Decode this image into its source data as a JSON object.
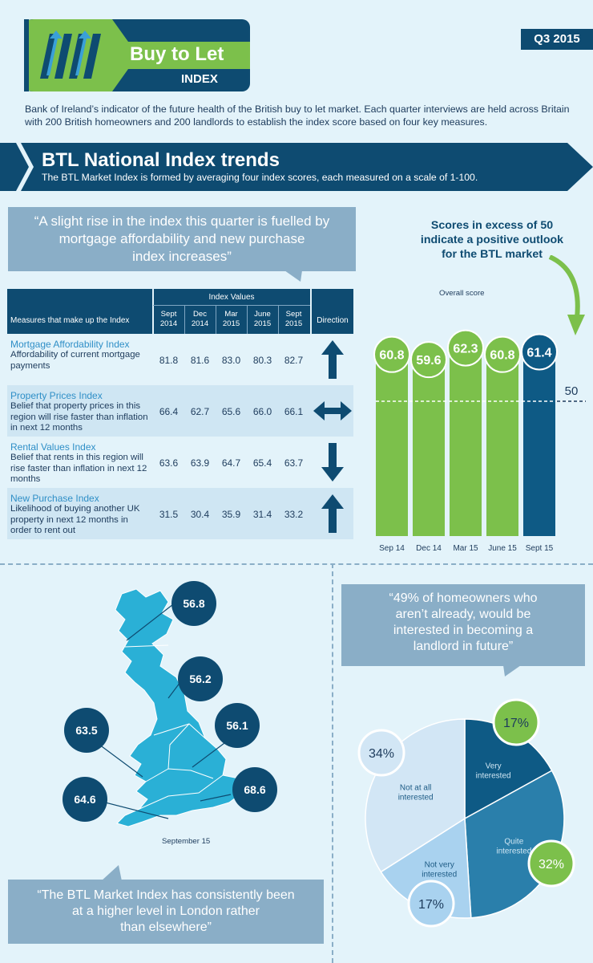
{
  "header": {
    "logo_title": "Buy to Let",
    "logo_sub": "INDEX",
    "quarter": "Q3 2015",
    "intro": "Bank of Ireland’s indicator of the future health of the British buy to let market. Each quarter interviews are held across Britain with 200 British homeowners and 200 landlords to establish the index score based on four key measures."
  },
  "banner": {
    "title": "BTL National Index trends",
    "subtitle": "The BTL Market Index is formed by averaging four index scores, each measured on a scale of 1-100."
  },
  "quote1": {
    "line1": "“A slight rise in the index this quarter is fuelled by",
    "line2": "mortgage affordability and new purchase",
    "line3": "index increases”"
  },
  "table": {
    "measures_header": "Measures that make up the Index",
    "index_values_header": "Index Values",
    "direction_header": "Direction",
    "columns": [
      {
        "l1": "Sept",
        "l2": "2014"
      },
      {
        "l1": "Dec",
        "l2": "2014"
      },
      {
        "l1": "Mar",
        "l2": "2015"
      },
      {
        "l1": "June",
        "l2": "2015"
      },
      {
        "l1": "Sept",
        "l2": "2015"
      }
    ],
    "rows": [
      {
        "title": "Mortgage Affordability Index",
        "desc": "Affordability of current mortgage payments",
        "values": [
          "81.8",
          "81.6",
          "83.0",
          "80.3",
          "82.7"
        ],
        "direction": "up-arrow-icon"
      },
      {
        "title": "Property Prices Index",
        "desc": "Belief that property prices in this region will rise faster than inflation in next 12 months",
        "values": [
          "66.4",
          "62.7",
          "65.6",
          "66.0",
          "66.1"
        ],
        "direction": "left-right-arrow-icon"
      },
      {
        "title": "Rental Values Index",
        "desc": "Belief that rents in this region will rise faster than inflation in next 12 months",
        "values": [
          "63.6",
          "63.9",
          "64.7",
          "65.4",
          "63.7"
        ],
        "direction": "down-arrow-icon"
      },
      {
        "title": "New Purchase Index",
        "desc": "Likelihood of buying another UK property in next 12 months in order to rent out",
        "values": [
          "31.5",
          "30.4",
          "35.9",
          "31.4",
          "33.2"
        ],
        "direction": "up-arrow-icon"
      }
    ]
  },
  "callout": {
    "line1": "Scores in excess of 50",
    "line2": "indicate a positive outlook",
    "line3": "for the BTL market"
  },
  "chart_data": [
    {
      "type": "bar",
      "title": "Overall score",
      "categories": [
        "Sep 14",
        "Dec 14",
        "Mar 15",
        "June 15",
        "Sept 15"
      ],
      "values": [
        60.8,
        59.6,
        62.3,
        60.8,
        61.4
      ],
      "labels": [
        "60.8",
        "59.6",
        "62.3",
        "60.8",
        "61.4"
      ],
      "reference_line": {
        "value": 50,
        "label": "50"
      },
      "colors": {
        "past": "#7cc04b",
        "current": "#0e5a85"
      }
    },
    {
      "type": "pie",
      "categories": [
        "Very interested",
        "Quite interested",
        "Not very interested",
        "Not at all interested"
      ],
      "labels": [
        "17%",
        "32%",
        "17%",
        "34%"
      ],
      "values": [
        17,
        32,
        17,
        34
      ],
      "colors": [
        "#0e5a85",
        "#2a7fab",
        "#a9d2ef",
        "#d2e6f5"
      ]
    }
  ],
  "map": {
    "caption": "September 15",
    "regions": [
      {
        "name": "Scotland",
        "score": "56.8"
      },
      {
        "name": "North England",
        "score": "56.2"
      },
      {
        "name": "Wales",
        "score": "63.5"
      },
      {
        "name": "Midlands / East",
        "score": "56.1"
      },
      {
        "name": "South West",
        "score": "64.6"
      },
      {
        "name": "London",
        "score": "68.6"
      }
    ]
  },
  "quote2": {
    "line1": "“The BTL Market Index has consistently been",
    "line2": "at a higher level in London rather",
    "line3": "than elsewhere”"
  },
  "quote3": {
    "line1": "“49% of homeowners who",
    "line2": "aren’t already, would be",
    "line3": "interested in becoming a",
    "line4": "landlord in future”"
  },
  "pie_labels": {
    "very": {
      "l1": "Very",
      "l2": "interested"
    },
    "quite": {
      "l1": "Quite",
      "l2": "interested"
    },
    "notvery": {
      "l1": "Not very",
      "l2": "interested"
    },
    "notatall": {
      "l1": "Not at all",
      "l2": "interested"
    }
  }
}
